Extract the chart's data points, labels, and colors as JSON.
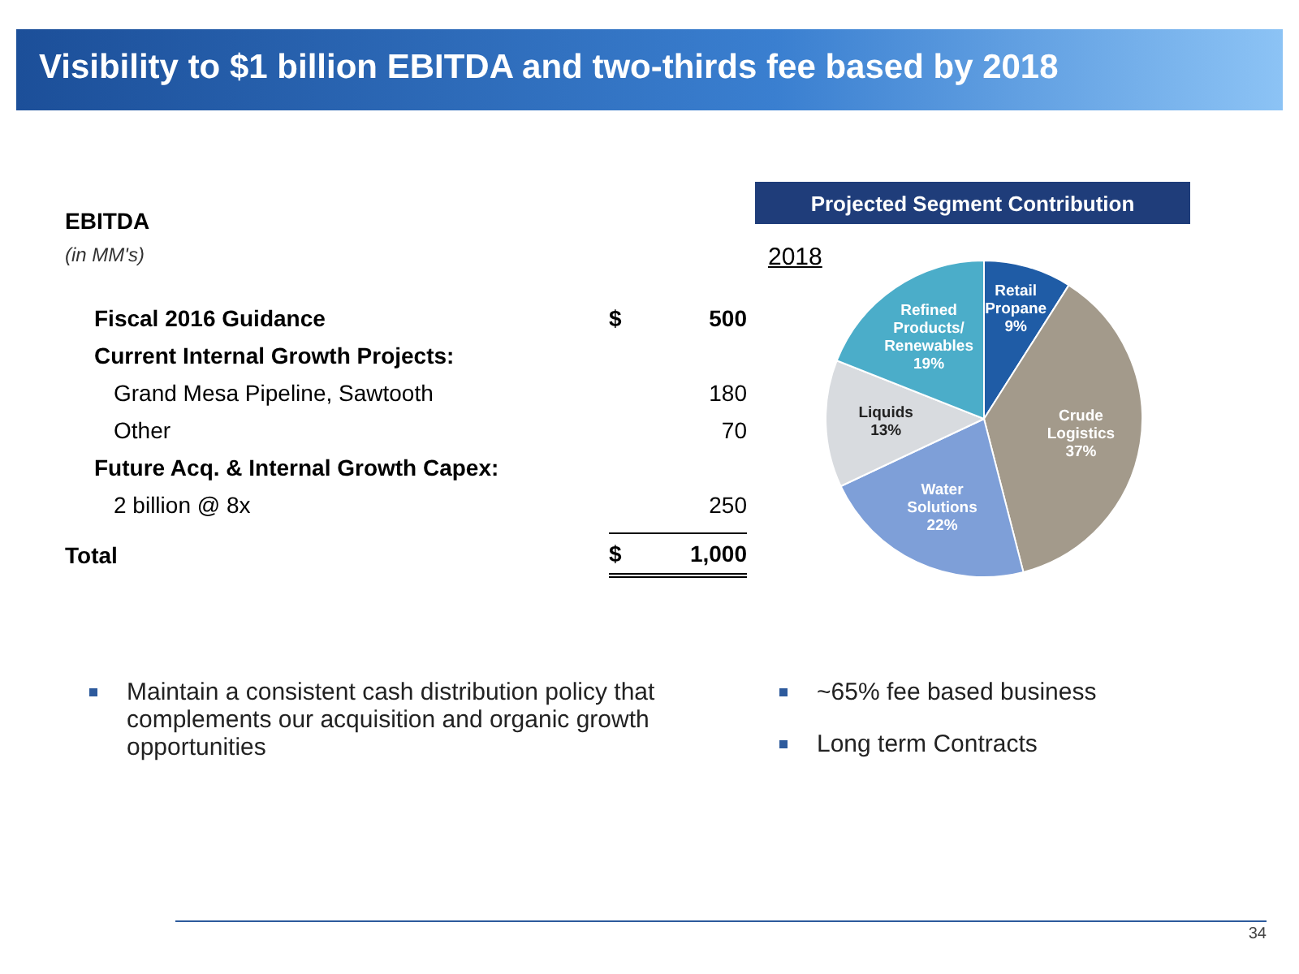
{
  "chart_data": [
    {
      "type": "other",
      "title": "Visibility to $1 billion EBITDA and two-thirds fee based by 2018",
      "annotations": [
        "34"
      ]
    },
    {
      "type": "other",
      "title": "EBITDA",
      "subtitle": "(in MM's)",
      "categories": [
        "Fiscal 2016 Guidance",
        "Grand Mesa Pipeline, Sawtooth",
        "Other",
        "2 billion @ 8x",
        "Total"
      ],
      "value_labels": [
        "$ 500",
        "180",
        "70",
        "250",
        "$ 1,000"
      ],
      "annotations": [
        {
          "text": "Current Internal Growth Projects:",
          "y": "Grand Mesa Pipeline, Sawtooth"
        },
        {
          "text": "Future Acq. & Internal Growth Capex:",
          "y": "2 billion @ 8x"
        },
        "Maintain a consistent cash distribution policy that complements our acquisition and organic growth opportunities"
      ]
    },
    {
      "type": "pie",
      "title": "Projected Segment Contribution",
      "subtitle": "2018",
      "categories": [
        "Retail Propane",
        "Crude Logistics",
        "Water Solutions",
        "Liquids",
        "Refined Products/ Renewables"
      ],
      "values": [
        9,
        37,
        22,
        13,
        19
      ],
      "colors": [
        "#1f5ca6",
        "#a39a8b",
        "#7e9fd8",
        "#d8dbdf",
        "#4badc9"
      ],
      "value_labels": [
        "9%",
        "37%",
        "22%",
        "13%",
        "19%"
      ],
      "annotations": [
        "~65% fee based business",
        "Long term Contracts"
      ]
    }
  ]
}
